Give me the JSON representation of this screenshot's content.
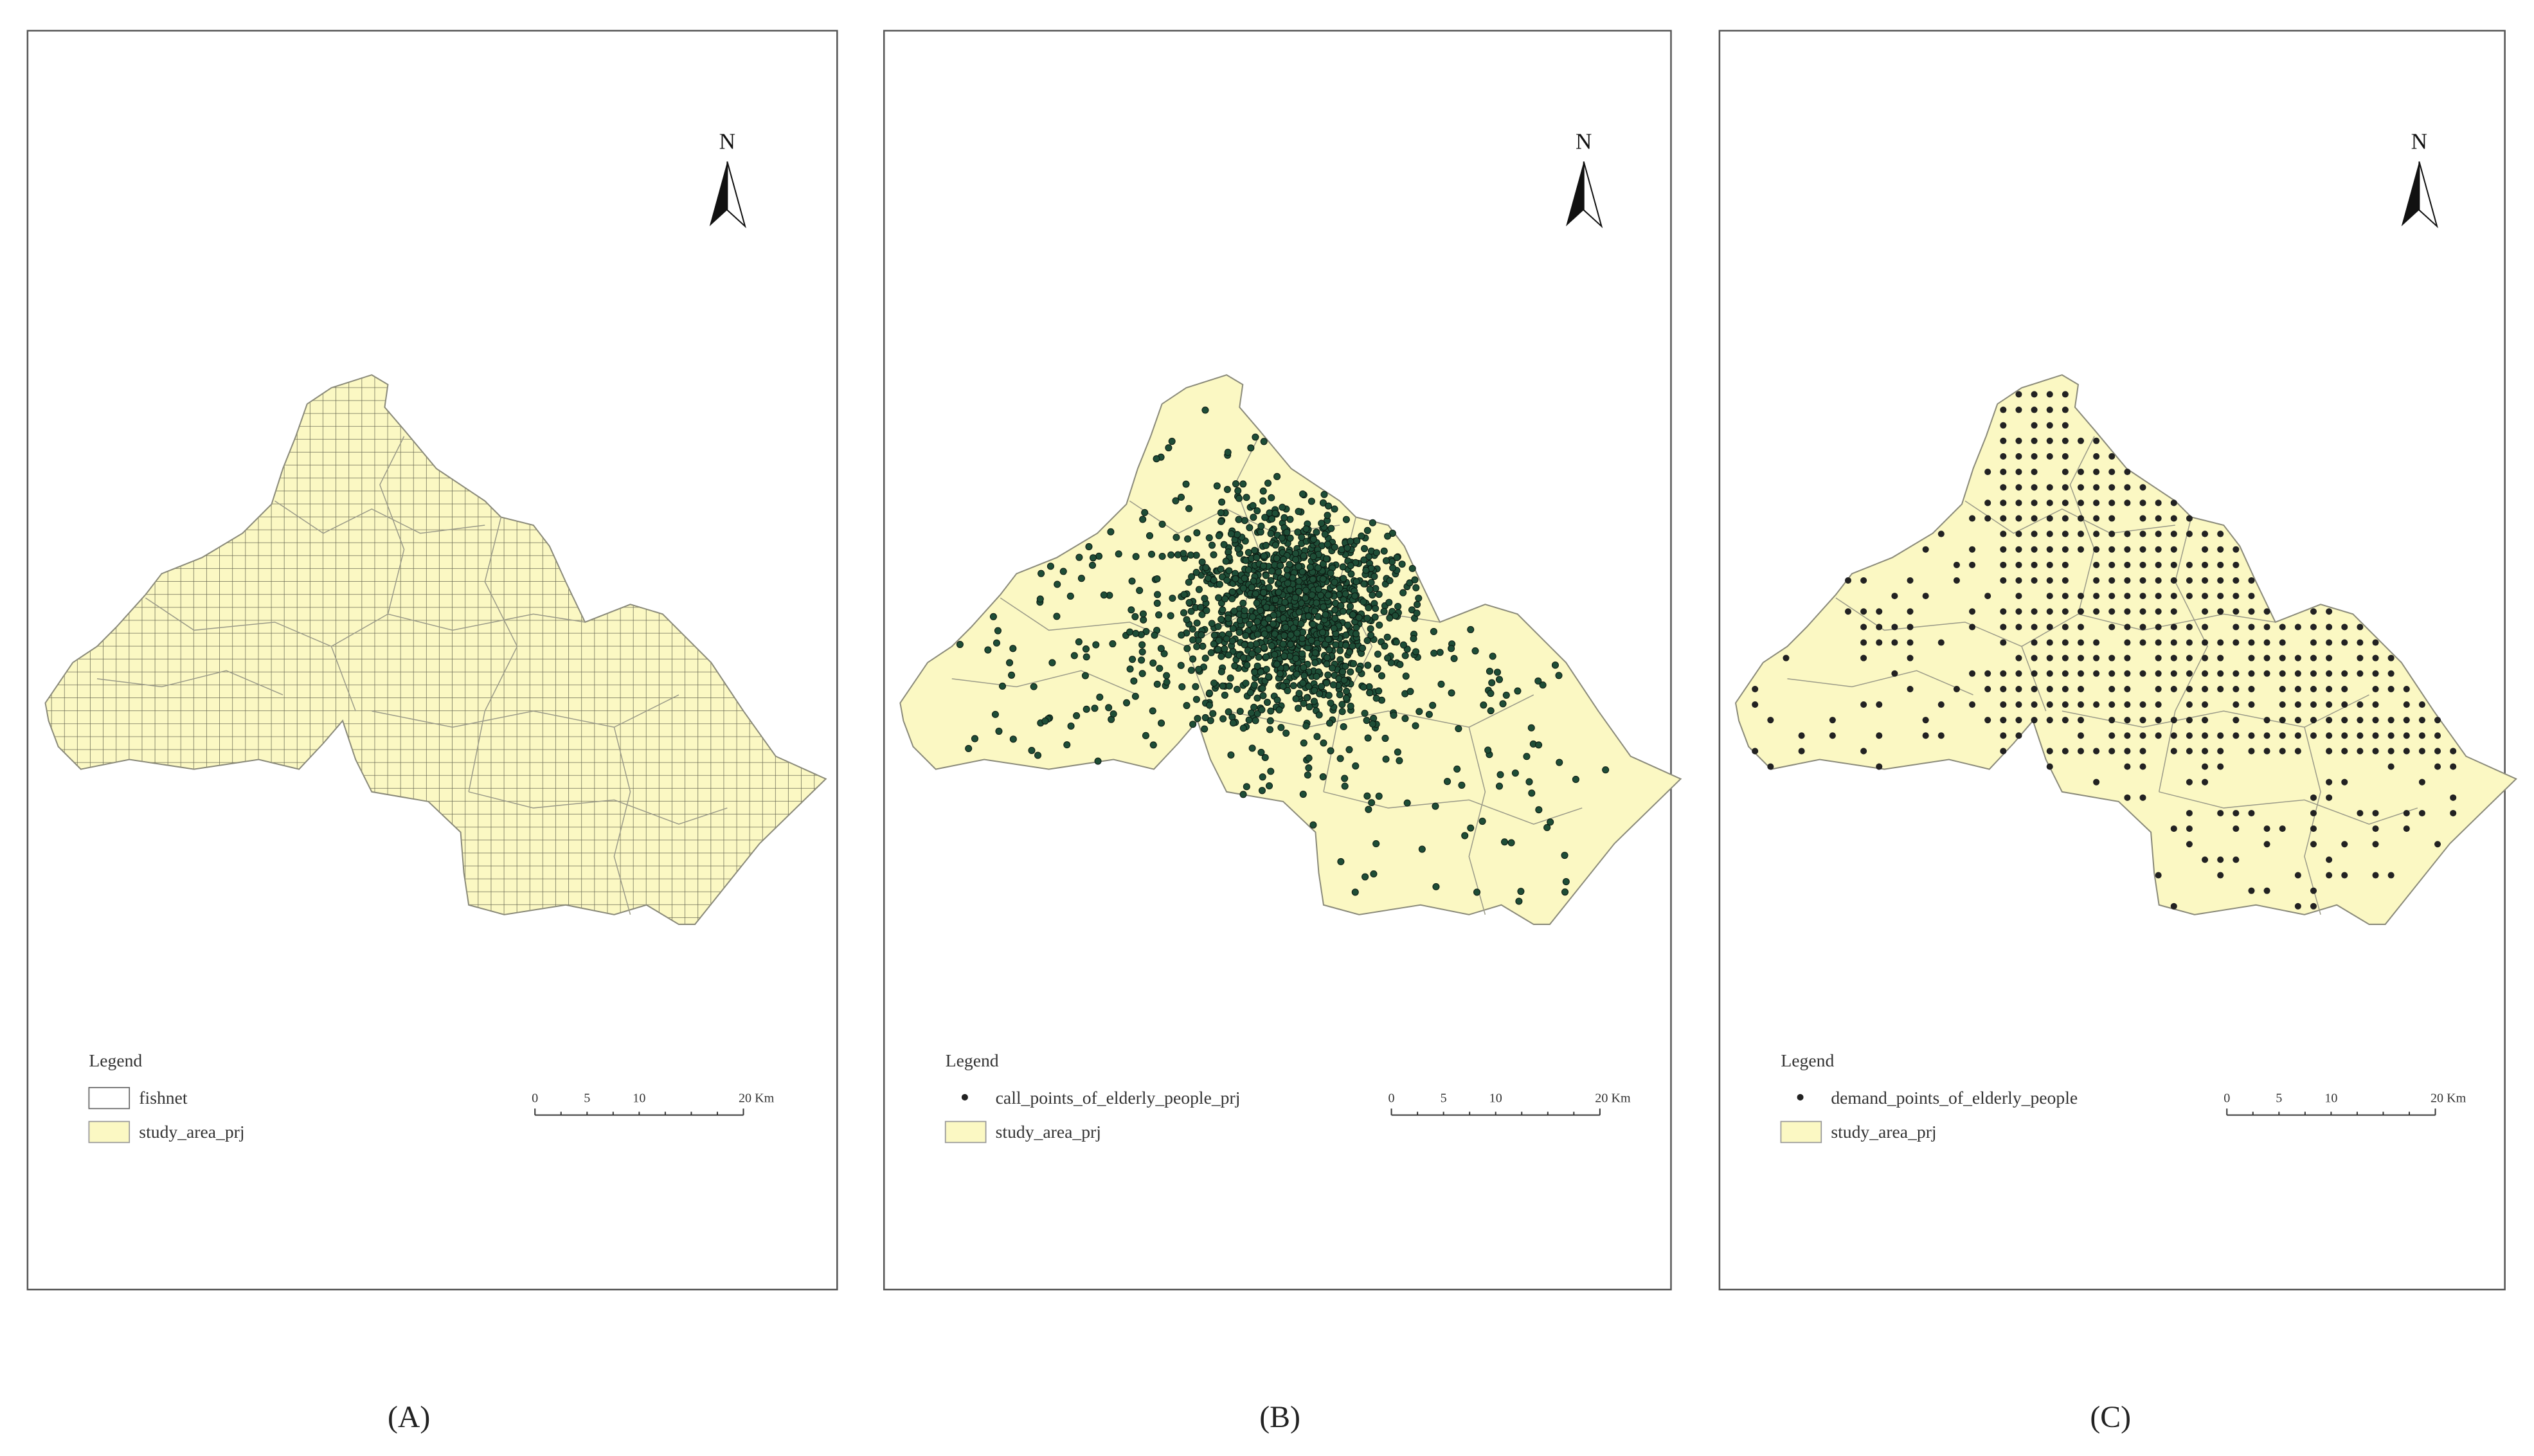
{
  "panels": [
    {
      "caption": "(A)",
      "north": "N",
      "legend": {
        "title": "Legend",
        "items": [
          "fishnet",
          "study_area_prj"
        ]
      },
      "scale": {
        "labels": [
          "0",
          "5",
          "10",
          "20 Km"
        ]
      }
    },
    {
      "caption": "(B)",
      "north": "N",
      "legend": {
        "title": "Legend",
        "items": [
          "call_points_of_elderly_people_prj",
          "study_area_prj"
        ]
      },
      "scale": {
        "labels": [
          "0",
          "5",
          "10",
          "20 Km"
        ]
      }
    },
    {
      "caption": "(C)",
      "north": "N",
      "legend": {
        "title": "Legend",
        "items": [
          "demand_points_of_elderly_people",
          "study_area_prj"
        ]
      },
      "scale": {
        "labels": [
          "0",
          "5",
          "10",
          "20 Km"
        ]
      }
    }
  ]
}
